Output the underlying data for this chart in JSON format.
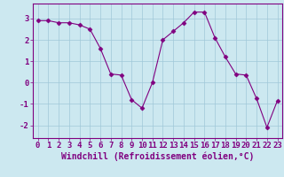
{
  "x": [
    0,
    1,
    2,
    3,
    4,
    5,
    6,
    7,
    8,
    9,
    10,
    11,
    12,
    13,
    14,
    15,
    16,
    17,
    18,
    19,
    20,
    21,
    22,
    23
  ],
  "y": [
    2.9,
    2.9,
    2.8,
    2.8,
    2.7,
    2.5,
    1.6,
    0.4,
    0.35,
    -0.8,
    -1.2,
    0.0,
    2.0,
    2.4,
    2.8,
    3.3,
    3.3,
    2.1,
    1.2,
    0.4,
    0.35,
    -0.75,
    -2.1,
    -0.85
  ],
  "line_color": "#800080",
  "marker": "D",
  "marker_size": 2.5,
  "bg_color": "#cce8f0",
  "grid_color": "#a0c8d8",
  "axis_color": "#800080",
  "spine_color": "#800080",
  "xlabel": "Windchill (Refroidissement éolien,°C)",
  "xlabel_fontsize": 7.0,
  "tick_fontsize": 6.5,
  "ylim": [
    -2.6,
    3.7
  ],
  "xlim": [
    -0.5,
    23.5
  ],
  "yticks": [
    -2,
    -1,
    0,
    1,
    2,
    3
  ],
  "xticks": [
    0,
    1,
    2,
    3,
    4,
    5,
    6,
    7,
    8,
    9,
    10,
    11,
    12,
    13,
    14,
    15,
    16,
    17,
    18,
    19,
    20,
    21,
    22,
    23
  ]
}
